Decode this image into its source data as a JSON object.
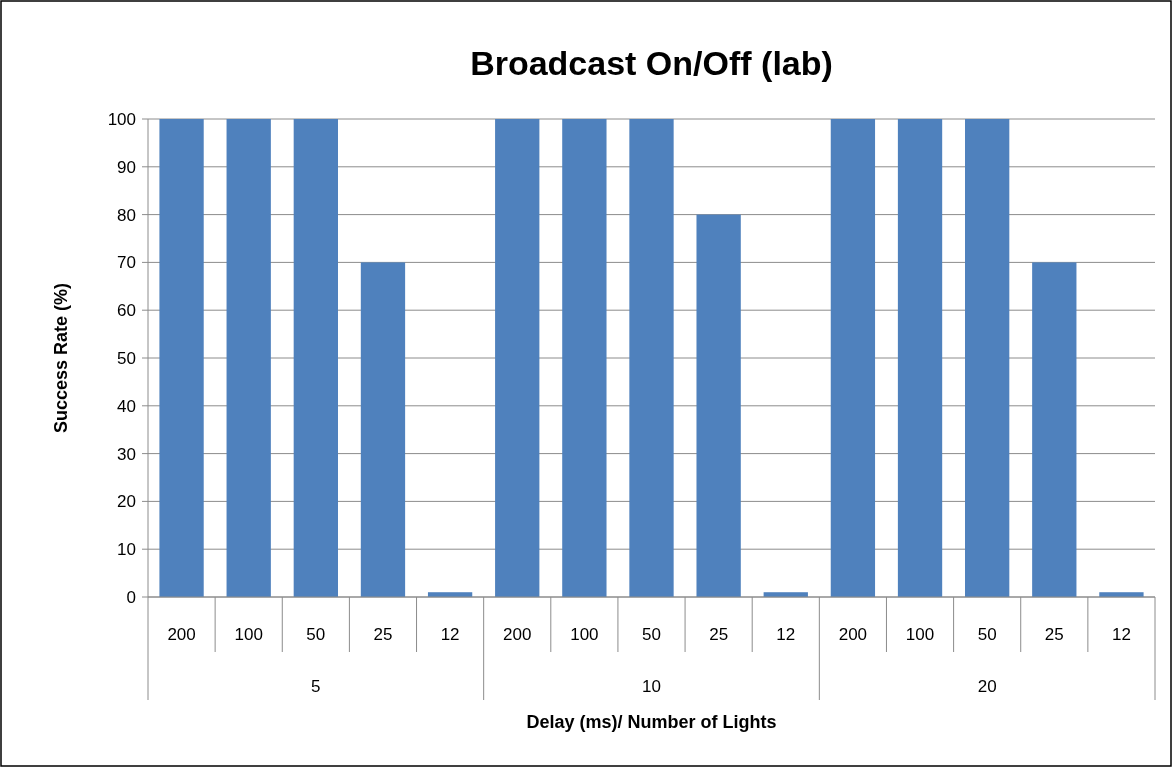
{
  "chart_data": {
    "type": "bar",
    "title": "Broadcast On/Off (lab)",
    "xlabel": "Delay (ms)/ Number of Lights",
    "ylabel": "Success Rate (%)",
    "categories": [
      "200",
      "100",
      "50",
      "25",
      "12",
      "200",
      "100",
      "50",
      "25",
      "12",
      "200",
      "100",
      "50",
      "25",
      "12"
    ],
    "values": [
      100,
      100,
      100,
      70,
      1,
      100,
      100,
      100,
      80,
      1,
      100,
      100,
      100,
      70,
      1
    ],
    "color": "#4f81bd",
    "annotations": [
      "5",
      "10",
      "20"
    ],
    "ylim": [
      0,
      100
    ],
    "yticks": [
      0,
      10,
      20,
      30,
      40,
      50,
      60,
      70,
      80,
      90,
      100
    ],
    "grid": "y"
  }
}
